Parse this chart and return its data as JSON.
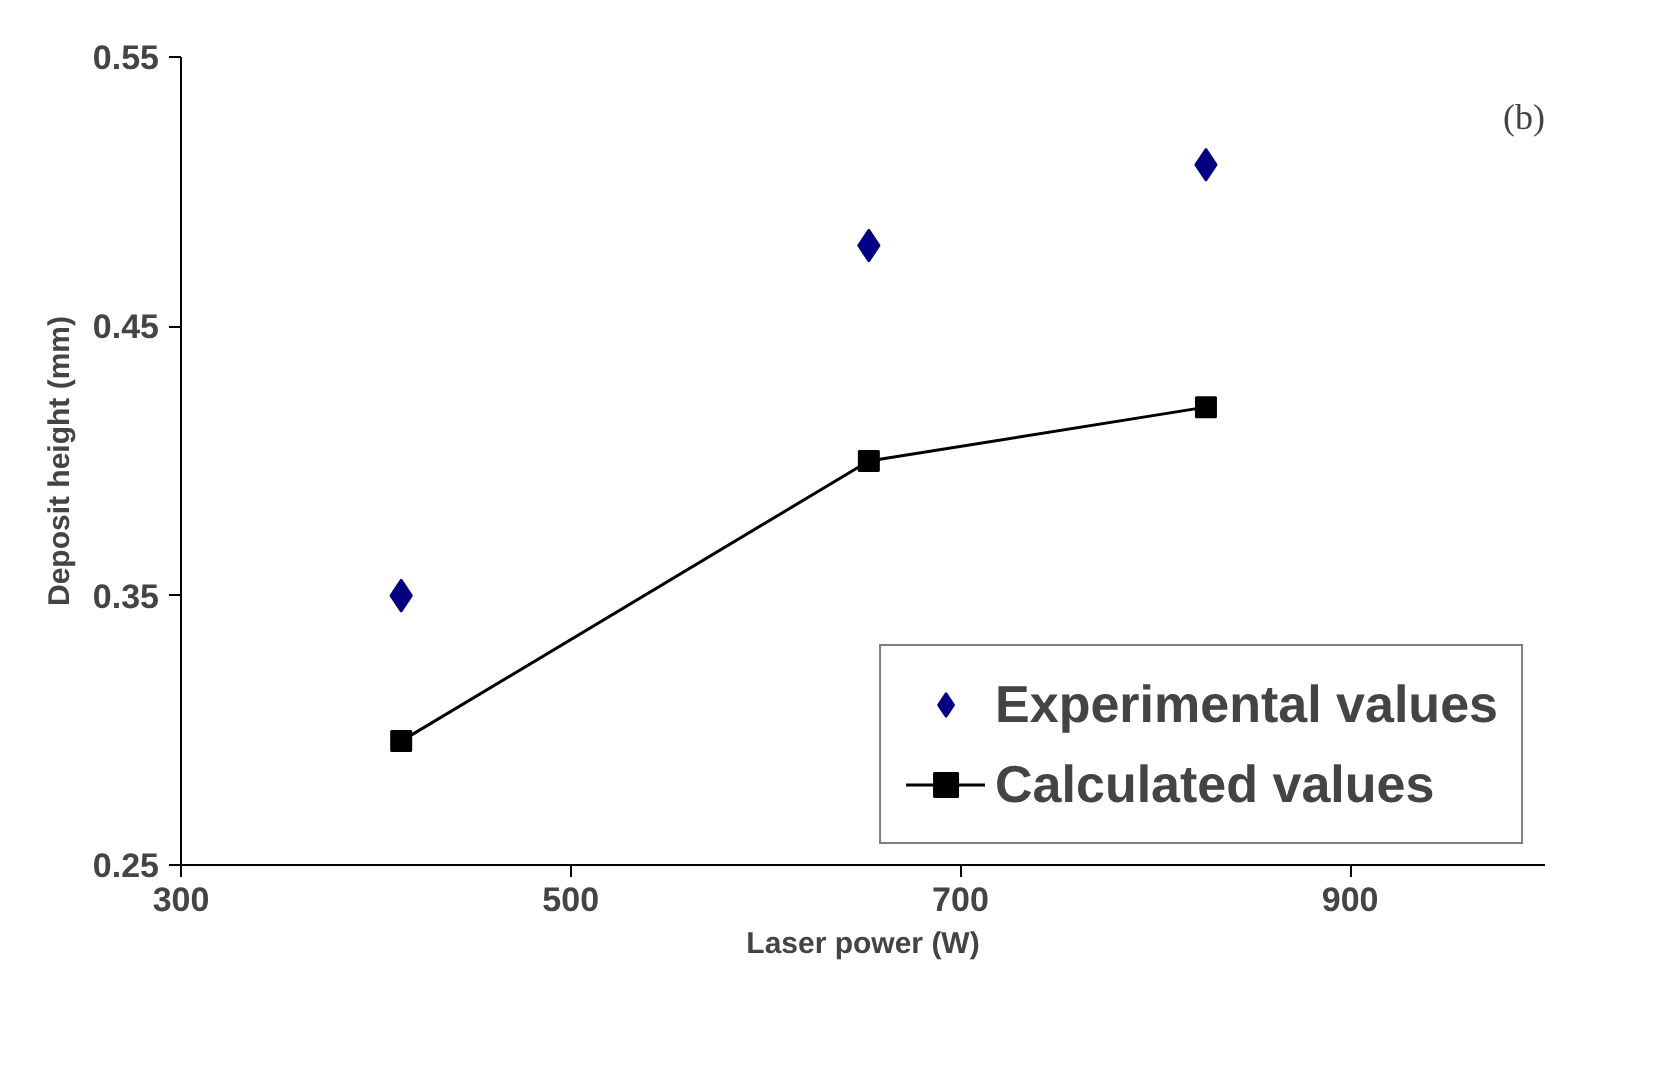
{
  "chart_data": {
    "type": "scatter",
    "xlabel": "Laser power (W)",
    "ylabel": "Deposit height (mm)",
    "annotations": [
      "(b)"
    ],
    "xlim": [
      300,
      1000
    ],
    "xticks": [
      300,
      500,
      700,
      900
    ],
    "ylim": [
      0.25,
      0.55
    ],
    "yticks": [
      0.25,
      0.35,
      0.45,
      0.55
    ],
    "grid": false,
    "legend": "bottom right",
    "series": [
      {
        "name": "Experimental values",
        "marker": "diamond",
        "color": "#000080",
        "x": [
          413,
          653,
          826
        ],
        "values": [
          0.35,
          0.48,
          0.51
        ]
      },
      {
        "name": "Calculated values",
        "type": "line",
        "marker": "square",
        "color": "#000000",
        "x": [
          413,
          653,
          826
        ],
        "values": [
          0.296,
          0.4,
          0.42
        ]
      }
    ]
  }
}
